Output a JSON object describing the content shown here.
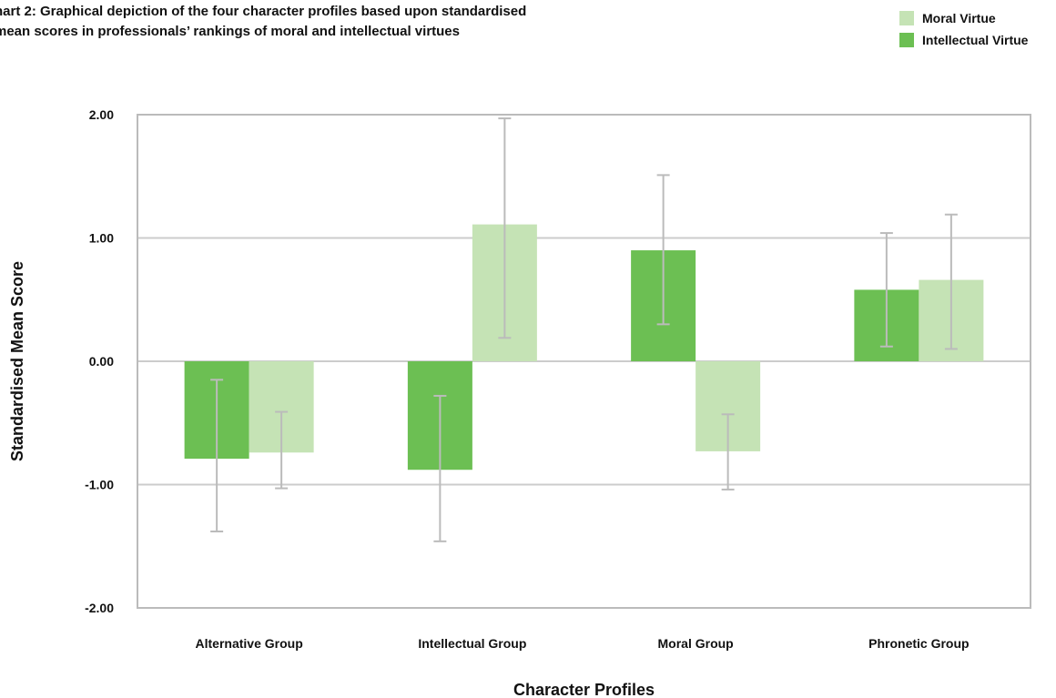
{
  "title_line1": "hart 2: Graphical depiction of the four character profiles based upon standardised",
  "title_line2": "mean scores in professionals’ rankings of moral and intellectual virtues",
  "legend": [
    {
      "label": "Moral Virtue",
      "color": "#c5e3b5"
    },
    {
      "label": "Intellectual Virtue",
      "color": "#6cbf53"
    }
  ],
  "chart_data": {
    "type": "bar",
    "categories": [
      "Alternative Group",
      "Intellectual Group",
      "Moral Group",
      "Phronetic Group"
    ],
    "series": [
      {
        "name": "Intellectual Virtue",
        "color": "#6cbf53",
        "values": [
          -0.79,
          -0.88,
          0.9,
          0.58
        ],
        "error_low": [
          -1.38,
          -1.46,
          0.3,
          0.12
        ],
        "error_high": [
          -0.15,
          -0.28,
          1.51,
          1.04
        ]
      },
      {
        "name": "Moral Virtue",
        "color": "#c5e3b5",
        "values": [
          -0.74,
          1.11,
          -0.73,
          0.66
        ],
        "error_low": [
          -1.03,
          0.19,
          -1.04,
          0.1
        ],
        "error_high": [
          -0.41,
          1.97,
          -0.43,
          1.19
        ]
      }
    ],
    "ylim": [
      -2.0,
      2.0
    ],
    "yticks": [
      "2.00",
      "1.00",
      "0.00",
      "-1.00",
      "-2.00"
    ],
    "ytick_values": [
      2,
      1,
      0,
      -1,
      -2
    ],
    "xlabel": "Character Profiles",
    "ylabel": "Standardised Mean Score",
    "grid": true,
    "error_bar_color": "#bbbbbb",
    "grid_color": "#cccccc"
  }
}
